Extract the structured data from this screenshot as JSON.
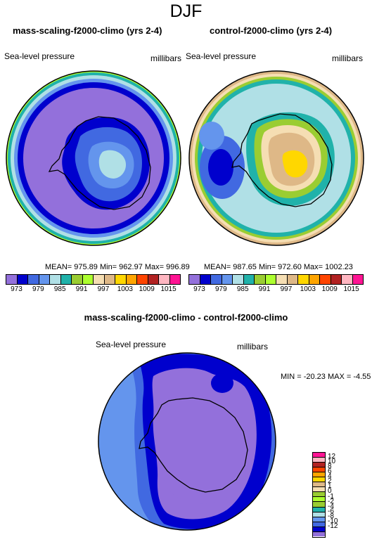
{
  "title": "DJF",
  "panels": [
    {
      "title": "mass-scaling-f2000-climo (yrs 2-4)",
      "left_label": "Sea-level pressure",
      "right_label": "millibars",
      "stats": "MEAN= 975.89  Min= 962.97  Max= 996.89"
    },
    {
      "title": "control-f2000-climo (yrs 2-4)",
      "left_label": "Sea-level pressure",
      "right_label": "millibars",
      "stats": "MEAN= 987.65  Min= 972.60  Max= 1002.23"
    },
    {
      "title": "mass-scaling-f2000-climo - control-f2000-climo",
      "left_label": "Sea-level pressure",
      "right_label": "millibars",
      "stats": "MIN = -20.23 MAX =  -4.55"
    }
  ],
  "abs_colorbar": {
    "colors": [
      "#9370DB",
      "#0000CD",
      "#4169E1",
      "#6495ED",
      "#B0E0E6",
      "#20B2AA",
      "#9ACD32",
      "#ADFF2F",
      "#F5DEB3",
      "#DEB887",
      "#FFD700",
      "#FFA500",
      "#FF4500",
      "#B22222",
      "#FFB6C1",
      "#FF1493"
    ],
    "labels": [
      "973",
      "979",
      "985",
      "991",
      "997",
      "1003",
      "1009",
      "1015"
    ]
  },
  "diff_colorbar": {
    "colors_top_to_bottom": [
      "#FF1493",
      "#FFB6C1",
      "#B22222",
      "#FF4500",
      "#FFA500",
      "#FFD700",
      "#DEB887",
      "#F5DEB3",
      "#9ACD32",
      "#ADFF2F",
      "#9ACD32",
      "#20B2AA",
      "#B0E0E6",
      "#6495ED",
      "#4169E1",
      "#0000CD",
      "#9370DB"
    ],
    "labels_top_to_bottom": [
      "12",
      "10",
      "8",
      "6",
      "4",
      "2",
      "1",
      "0",
      "-1",
      "-2",
      "-4",
      "-6",
      "-8",
      "-10",
      "-12"
    ]
  }
}
